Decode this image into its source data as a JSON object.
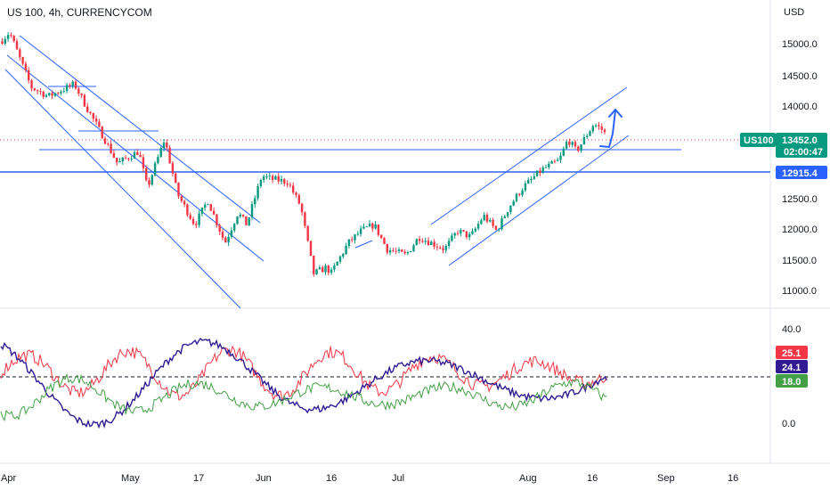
{
  "header": {
    "title": "US 100, 4h, CURRENCYCOM",
    "currency": "USD"
  },
  "chart_data": [
    {
      "type": "candlestick",
      "title": "US 100, 4h, CURRENCYCOM",
      "ylabel": "USD",
      "y_ticks": [
        "15000.0",
        "14500.0",
        "14000.0",
        "12500.0",
        "12000.0",
        "11500.0",
        "11000.0"
      ],
      "x_ticks": [
        "Apr",
        "May",
        "17",
        "Jun",
        "16",
        "Jul",
        "Aug",
        "16",
        "Sep",
        "16"
      ],
      "ylim": [
        10700,
        15300
      ],
      "close_path": [
        [
          "Apr",
          15000
        ],
        [
          "Apr 3",
          15150
        ],
        [
          "Apr 8",
          14250
        ],
        [
          "Apr 12",
          14100
        ],
        [
          "Apr 18",
          14300
        ],
        [
          "Apr 21",
          13900
        ],
        [
          "Apr 25",
          13400
        ],
        [
          "Apr 28",
          13000
        ],
        [
          "May 3",
          13200
        ],
        [
          "May 5",
          12600
        ],
        [
          "May 9",
          13400
        ],
        [
          "May 12",
          12500
        ],
        [
          "May 16",
          12000
        ],
        [
          "May 19",
          12400
        ],
        [
          "May 23",
          11700
        ],
        [
          "May 26",
          12200
        ],
        [
          "May 28",
          12000
        ],
        [
          "Jun 1",
          12800
        ],
        [
          "Jun 3",
          12750
        ],
        [
          "Jun 7",
          12700
        ],
        [
          "Jun 10",
          12300
        ],
        [
          "Jun 13",
          11200
        ],
        [
          "Jun 16",
          11300
        ],
        [
          "Jun 17",
          11200
        ],
        [
          "Jun 21",
          11700
        ],
        [
          "Jun 24",
          11900
        ],
        [
          "Jun 27",
          12000
        ],
        [
          "Jun 30",
          11600
        ],
        [
          "Jul 3",
          11500
        ],
        [
          "Jul 6",
          11800
        ],
        [
          "Jul 9",
          11700
        ],
        [
          "Jul 12",
          11600
        ],
        [
          "Jul 15",
          11900
        ],
        [
          "Jul 18",
          11800
        ],
        [
          "Jul 21",
          12150
        ],
        [
          "Jul 24",
          11900
        ],
        [
          "Jul 27",
          12300
        ],
        [
          "Jul 30",
          12600
        ],
        [
          "Aug 1",
          12700
        ],
        [
          "Aug 4",
          12900
        ],
        [
          "Aug 8",
          13050
        ],
        [
          "Aug 10",
          13400
        ],
        [
          "Aug 12",
          13200
        ],
        [
          "Aug 16",
          13650
        ],
        [
          "Aug 18",
          13550
        ],
        [
          "Aug 19",
          13452
        ]
      ],
      "horizontal_levels": [
        {
          "price": 12915.4,
          "color": "#2962ff"
        },
        {
          "price": 13170,
          "color": "#2962ff"
        }
      ],
      "last_price": {
        "symbol": "US100",
        "value": "13452.0",
        "countdown": "02:00:47",
        "color": "#089981"
      },
      "level_tag": {
        "value": "12915.4",
        "color": "#2962ff"
      },
      "channels": [
        {
          "name": "descending",
          "color": "#2962ff"
        },
        {
          "name": "ascending",
          "color": "#2962ff"
        }
      ],
      "projection_arrow": {
        "direction": "up",
        "color": "#2962ff"
      },
      "up_color": "#089981",
      "down_color": "#f23645"
    },
    {
      "type": "line",
      "indicator": "oscillator",
      "y_ticks": [
        "40.0",
        "0.0"
      ],
      "ylim": [
        -8,
        52
      ],
      "reference_level": 18.0,
      "series": [
        {
          "label": "25.1",
          "color": "#f23645",
          "last": 25.1
        },
        {
          "label": "24.1",
          "color": "#311b92",
          "last": 24.1
        },
        {
          "label": "18.0",
          "color": "#43a047",
          "last": 18.0
        }
      ]
    }
  ]
}
